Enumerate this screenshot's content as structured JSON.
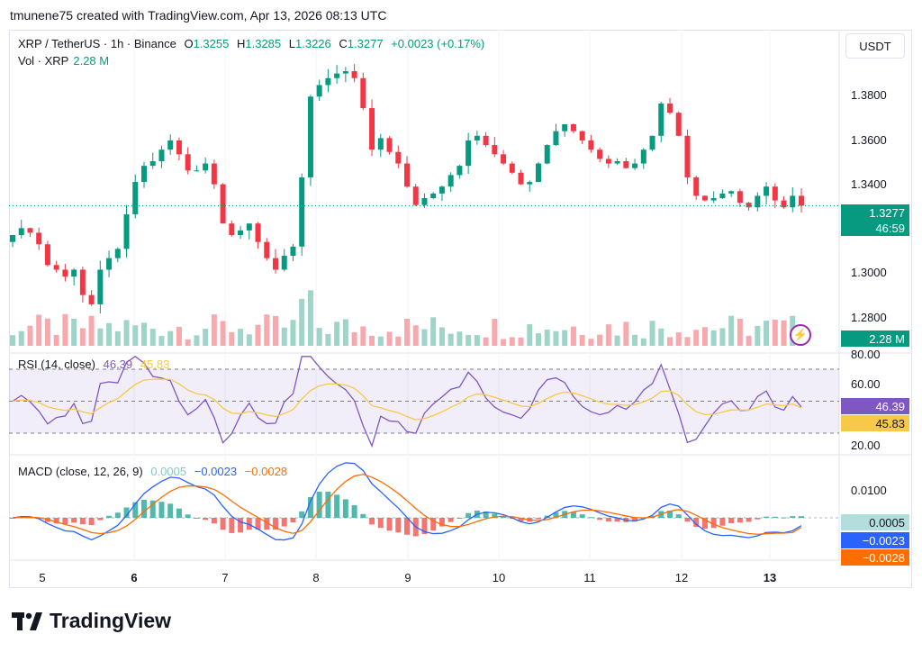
{
  "header": "tmunene75 created with TradingView.com, Apr 13, 2026 08:13 UTC",
  "legend": {
    "symbol": "XRP / TetherUS · 1h · Binance",
    "o_label": "O",
    "o": "1.3255",
    "h_label": "H",
    "h": "1.3285",
    "l_label": "L",
    "l": "1.3226",
    "c_label": "C",
    "c": "1.3277",
    "change": "+0.0023 (+0.17%)",
    "vol_label": "Vol · XRP",
    "vol": "2.28 M"
  },
  "currency_button": "USDT",
  "price_axis": [
    "1.3800",
    "1.3600",
    "1.3400",
    "1.3000",
    "1.2800"
  ],
  "price_tag": "1.3277",
  "countdown_tag": "46:59",
  "volume_tag": "2.28 M",
  "rsi": {
    "title": "RSI (14, close)",
    "value": "46.39",
    "ma_value": "45.83",
    "axis": [
      "80.00",
      "60.00",
      "20.00"
    ],
    "tag_rsi": "46.39",
    "tag_ma": "45.83"
  },
  "macd": {
    "title": "MACD (close, 12, 26, 9)",
    "hist": "0.0005",
    "macd": "−0.0023",
    "signal": "−0.0028",
    "axis": [
      "0.0100"
    ],
    "tag_hist": "0.0005",
    "tag_macd": "−0.0023",
    "tag_signal": "−0.0028"
  },
  "time_axis": [
    "5",
    "6",
    "7",
    "8",
    "9",
    "10",
    "11",
    "12",
    "13"
  ],
  "brand": "TradingView",
  "colors": {
    "up": "#089981",
    "down": "#f23645",
    "rsi": "#7e57c2",
    "rsi_ma": "#f7c948",
    "macd": "#2962ff",
    "signal": "#ff6d00"
  },
  "chart_data": {
    "type": "candlestick",
    "title": "XRP / TetherUS · 1h · Binance",
    "x": [
      "5",
      "6",
      "7",
      "8",
      "9",
      "10",
      "11",
      "12",
      "13"
    ],
    "price_range": [
      1.267,
      1.395
    ],
    "ohlc_close": [
      1.315,
      1.318,
      1.316,
      1.311,
      1.302,
      1.3,
      1.297,
      1.3,
      1.289,
      1.285,
      1.3,
      1.305,
      1.309,
      1.324,
      1.338,
      1.345,
      1.347,
      1.352,
      1.356,
      1.35,
      1.343,
      1.343,
      1.346,
      1.337,
      1.32,
      1.315,
      1.317,
      1.32,
      1.312,
      1.305,
      1.3,
      1.306,
      1.31,
      1.34,
      1.375,
      1.38,
      1.383,
      1.385,
      1.386,
      1.383,
      1.37,
      1.352,
      1.357,
      1.351,
      1.346,
      1.336,
      1.328,
      1.331,
      1.333,
      1.336,
      1.341,
      1.345,
      1.356,
      1.358,
      1.354,
      1.35,
      1.346,
      1.342,
      1.337,
      1.338,
      1.346,
      1.354,
      1.36,
      1.363,
      1.36,
      1.356,
      1.352,
      1.348,
      1.346,
      1.347,
      1.344,
      1.346,
      1.352,
      1.358,
      1.372,
      1.368,
      1.358,
      1.34,
      1.332,
      1.33,
      1.331,
      1.333,
      1.334,
      1.329,
      1.327,
      1.332,
      1.336,
      1.33,
      1.327,
      1.332,
      1.3277
    ],
    "volume_range": [
      0,
      8.5
    ],
    "volume_label": "Vol · XRP",
    "rsi": {
      "range": [
        0,
        100
      ],
      "levels": [
        30,
        50,
        70
      ],
      "latest": 46.39,
      "ma_latest": 45.83
    },
    "macd": {
      "range": [
        -0.012,
        0.016
      ],
      "latest": -0.0023,
      "signal_latest": -0.0028,
      "hist_latest": 0.0005
    }
  }
}
